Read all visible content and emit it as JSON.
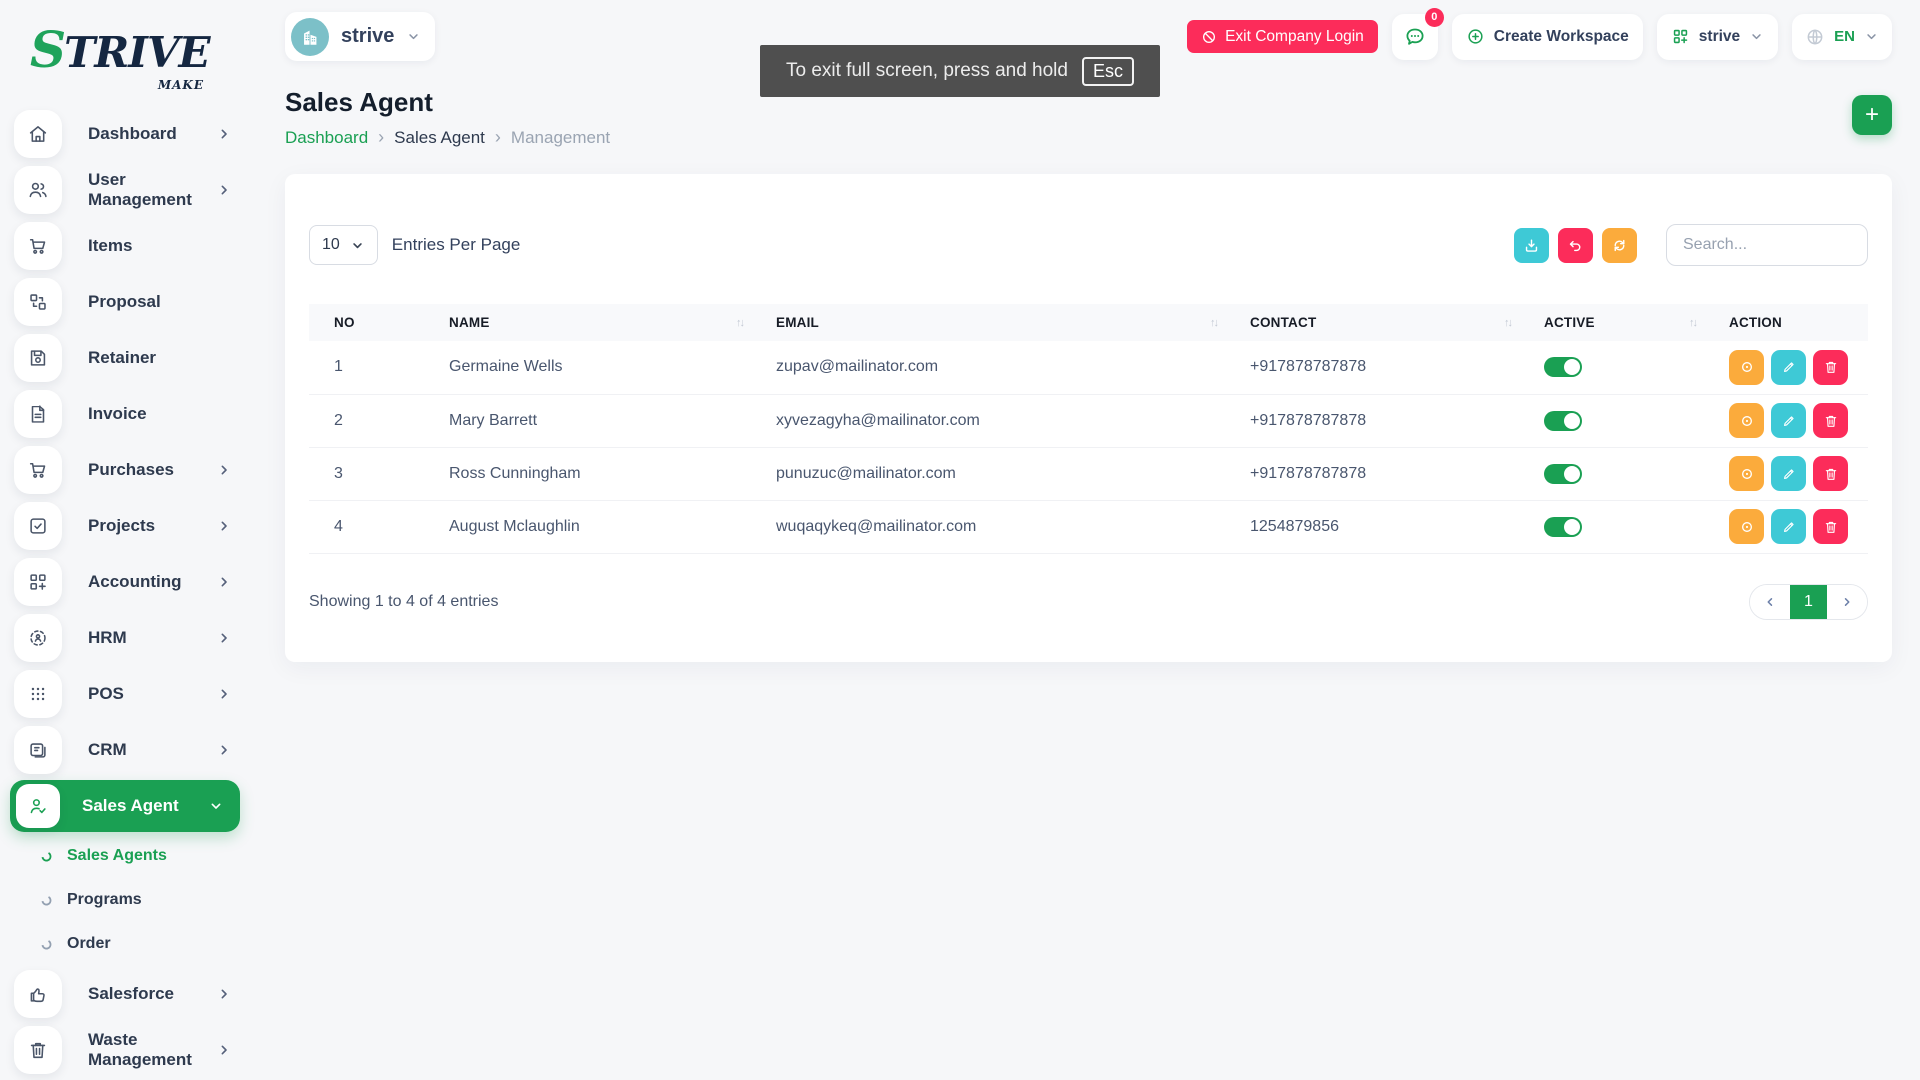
{
  "brand": {
    "name_initial": "S",
    "name_rest": "TRIVE",
    "tagline": "MAKE"
  },
  "topbar": {
    "company_selector": {
      "label": "strive",
      "avatar_icon": "building-icon"
    },
    "fullscreen_notice": {
      "text": "To exit full screen, press and hold",
      "key": "Esc"
    },
    "exit_company_login": "Exit Company Login",
    "messages_badge": "0",
    "create_workspace": "Create Workspace",
    "workspace_selector": "strive",
    "language": "EN"
  },
  "page": {
    "title": "Sales Agent",
    "breadcrumb": [
      "Dashboard",
      "Sales Agent",
      "Management"
    ]
  },
  "sidebar": {
    "items": [
      {
        "label": "Dashboard",
        "icon": "home-icon",
        "chevron": "right"
      },
      {
        "label": "User Management",
        "icon": "users-icon",
        "chevron": "right"
      },
      {
        "label": "Items",
        "icon": "cart-icon",
        "chevron": "none"
      },
      {
        "label": "Proposal",
        "icon": "proposal-icon",
        "chevron": "none"
      },
      {
        "label": "Retainer",
        "icon": "save-icon",
        "chevron": "none"
      },
      {
        "label": "Invoice",
        "icon": "invoice-icon",
        "chevron": "none"
      },
      {
        "label": "Purchases",
        "icon": "cart-icon",
        "chevron": "right"
      },
      {
        "label": "Projects",
        "icon": "check-square-icon",
        "chevron": "right"
      },
      {
        "label": "Accounting",
        "icon": "grid-plus-icon",
        "chevron": "right"
      },
      {
        "label": "HRM",
        "icon": "focus-person-icon",
        "chevron": "right"
      },
      {
        "label": "POS",
        "icon": "dots-grid-icon",
        "chevron": "right"
      },
      {
        "label": "CRM",
        "icon": "id-card-icon",
        "chevron": "right"
      },
      {
        "label": "Sales Agent",
        "icon": "user-check-icon",
        "chevron": "down",
        "active": true
      },
      {
        "label": "Sales Agents",
        "type": "sub",
        "active": true
      },
      {
        "label": "Programs",
        "type": "sub"
      },
      {
        "label": "Order",
        "type": "sub"
      },
      {
        "label": "Salesforce",
        "icon": "thumbs-up-icon",
        "chevron": "right"
      },
      {
        "label": "Waste Management",
        "icon": "trash-icon",
        "chevron": "right"
      }
    ]
  },
  "table_card": {
    "entries_per_page": {
      "value": "10",
      "label": "Entries Per Page"
    },
    "search_placeholder": "Search...",
    "columns": [
      {
        "label": "NO",
        "sortable": false
      },
      {
        "label": "NAME",
        "sortable": true
      },
      {
        "label": "EMAIL",
        "sortable": true
      },
      {
        "label": "CONTACT",
        "sortable": true
      },
      {
        "label": "ACTIVE",
        "sortable": true
      },
      {
        "label": "ACTION",
        "sortable": false
      }
    ],
    "rows": [
      {
        "no": "1",
        "name": "Germaine Wells",
        "email": "zupav@mailinator.com",
        "contact": "+917878787878",
        "active": true
      },
      {
        "no": "2",
        "name": "Mary Barrett",
        "email": "xyvezagyha@mailinator.com",
        "contact": "+917878787878",
        "active": true
      },
      {
        "no": "3",
        "name": "Ross Cunningham",
        "email": "punuzuc@mailinator.com",
        "contact": "+917878787878",
        "active": true
      },
      {
        "no": "4",
        "name": "August Mclaughlin",
        "email": "wuqaqykeq@mailinator.com",
        "contact": "1254879856",
        "active": true
      }
    ],
    "footer": {
      "showing_text": "Showing 1 to 4 of 4 entries",
      "page": "1"
    }
  },
  "colors": {
    "primary_green": "#1aa053",
    "pink": "#fc2c5a",
    "orange": "#fbab3c",
    "teal": "#3ec9d6"
  }
}
